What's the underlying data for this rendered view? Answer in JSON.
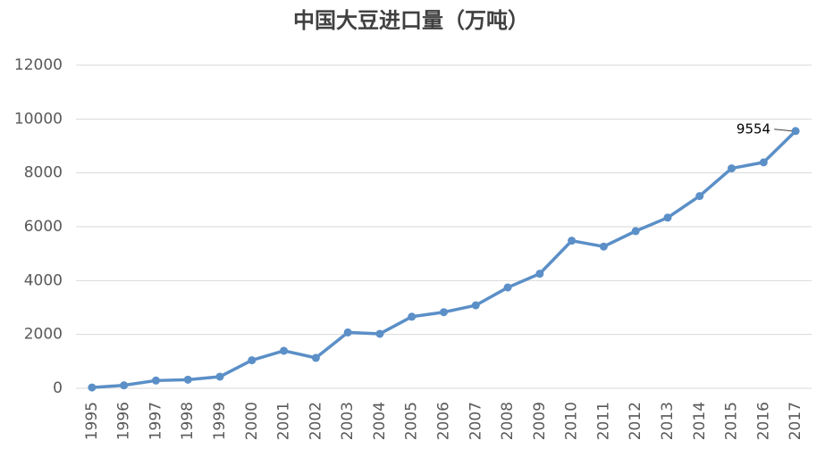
{
  "chart_data": {
    "type": "line",
    "title": "中国大豆进口量（万吨）",
    "categories": [
      "1995",
      "1996",
      "1997",
      "1998",
      "1999",
      "2000",
      "2001",
      "2002",
      "2003",
      "2004",
      "2005",
      "2006",
      "2007",
      "2008",
      "2009",
      "2010",
      "2011",
      "2012",
      "2013",
      "2014",
      "2015",
      "2016",
      "2017"
    ],
    "values": [
      30,
      111,
      288,
      320,
      432,
      1042,
      1394,
      1131,
      2074,
      2023,
      2659,
      2827,
      3082,
      3744,
      4255,
      5480,
      5264,
      5838,
      6338,
      7140,
      8169,
      8391,
      9554
    ],
    "color": "#5b8fc7",
    "ylim": [
      0,
      12000
    ],
    "yticks": [
      0,
      2000,
      4000,
      6000,
      8000,
      10000,
      12000
    ],
    "grid": true
  }
}
